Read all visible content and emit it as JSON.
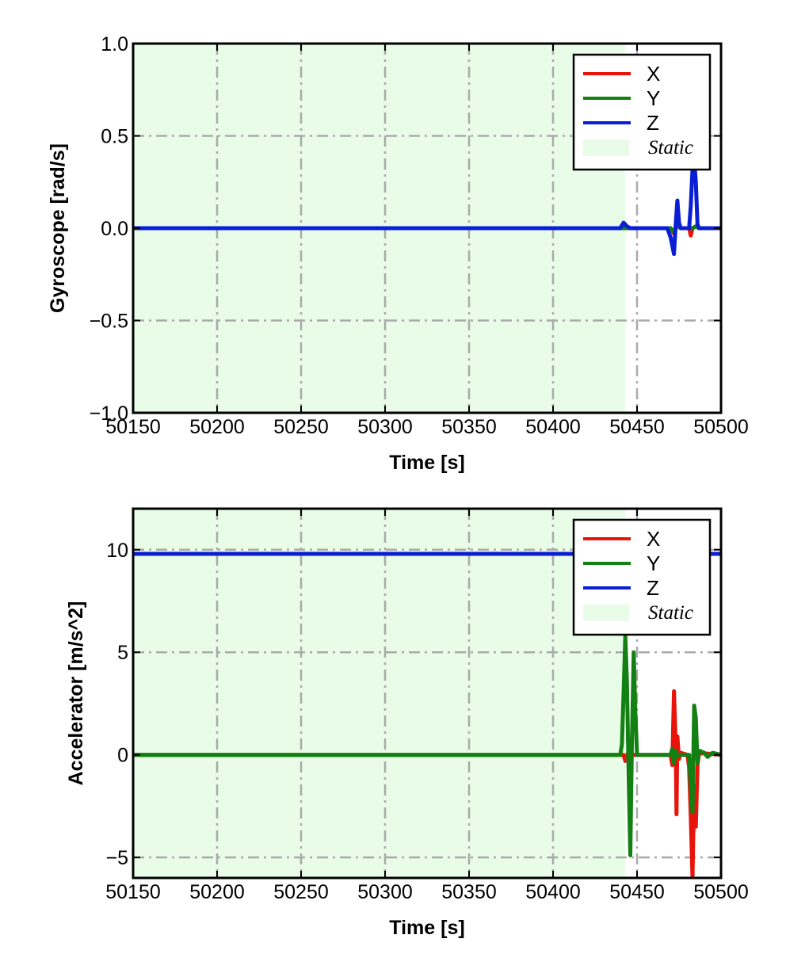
{
  "chart_data": [
    {
      "type": "line",
      "xlabel": "Time [s]",
      "ylabel": "Gyroscope [rad/s]",
      "xlim": [
        50150,
        50500
      ],
      "ylim": [
        -1.0,
        1.0
      ],
      "xticks": [
        50150,
        50200,
        50250,
        50300,
        50350,
        50400,
        50450,
        50500
      ],
      "xtick_labels": [
        "50150",
        "50200",
        "50250",
        "50300",
        "50350",
        "50400",
        "50450",
        "50500"
      ],
      "yticks": [
        1.0,
        0.5,
        0.0,
        -0.5,
        -1.0
      ],
      "ytick_labels": [
        "1.0",
        "0.5",
        "0.0",
        "−0.5",
        "−1.0"
      ],
      "grid": true,
      "legend_position": "top-right",
      "static_region": {
        "label": "Static",
        "x_start": 50150,
        "x_end": 50443,
        "color": "#e8fce8"
      },
      "series": [
        {
          "name": "X",
          "color": "#e8140c",
          "points": [
            [
              50150,
              0
            ],
            [
              50440,
              0
            ],
            [
              50443,
              0.01
            ],
            [
              50446,
              0
            ],
            [
              50470,
              0
            ],
            [
              50472,
              -0.03
            ],
            [
              50474,
              0.02
            ],
            [
              50476,
              0
            ],
            [
              50481,
              0
            ],
            [
              50482,
              -0.04
            ],
            [
              50483,
              0
            ],
            [
              50485,
              0.01
            ],
            [
              50487,
              0
            ],
            [
              50500,
              0
            ]
          ]
        },
        {
          "name": "Y",
          "color": "#138013",
          "points": [
            [
              50150,
              0
            ],
            [
              50470,
              0
            ],
            [
              50472,
              -0.02
            ],
            [
              50474,
              0.02
            ],
            [
              50476,
              0
            ],
            [
              50483,
              0
            ],
            [
              50485,
              0.01
            ],
            [
              50487,
              0
            ],
            [
              50500,
              0
            ]
          ]
        },
        {
          "name": "Z",
          "color": "#0a1ed6",
          "points": [
            [
              50150,
              0
            ],
            [
              50440,
              0
            ],
            [
              50442,
              0.03
            ],
            [
              50444,
              0.01
            ],
            [
              50446,
              0
            ],
            [
              50468,
              0
            ],
            [
              50470,
              -0.05
            ],
            [
              50472,
              -0.14
            ],
            [
              50473,
              0.02
            ],
            [
              50474,
              0.15
            ],
            [
              50475,
              0.03
            ],
            [
              50476,
              0
            ],
            [
              50481,
              0
            ],
            [
              50482,
              0.12
            ],
            [
              50483,
              0.32
            ],
            [
              50484,
              0.38
            ],
            [
              50485,
              0.25
            ],
            [
              50486,
              0.02
            ],
            [
              50487,
              0
            ],
            [
              50500,
              0
            ]
          ]
        }
      ],
      "legend": [
        {
          "label": "X",
          "color": "#e8140c"
        },
        {
          "label": "Y",
          "color": "#138013"
        },
        {
          "label": "Z",
          "color": "#0a1ed6"
        },
        {
          "label": "Static",
          "color": "#e8fce8"
        }
      ]
    },
    {
      "type": "line",
      "xlabel": "Time [s]",
      "ylabel": "Accelerator [m/s^2]",
      "xlim": [
        50150,
        50500
      ],
      "ylim": [
        -6,
        12
      ],
      "xticks": [
        50150,
        50200,
        50250,
        50300,
        50350,
        50400,
        50450,
        50500
      ],
      "xtick_labels": [
        "50150",
        "50200",
        "50250",
        "50300",
        "50350",
        "50400",
        "50450",
        "50500"
      ],
      "yticks": [
        10,
        5,
        0,
        -5
      ],
      "ytick_labels": [
        "10",
        "5",
        "0",
        "−5"
      ],
      "grid": true,
      "legend_position": "top-right",
      "static_region": {
        "label": "Static",
        "x_start": 50150,
        "x_end": 50443,
        "color": "#e8fce8"
      },
      "series": [
        {
          "name": "X",
          "color": "#e8140c",
          "points": [
            [
              50150,
              0
            ],
            [
              50442,
              0
            ],
            [
              50443,
              -0.3
            ],
            [
              50445,
              0.2
            ],
            [
              50447,
              0
            ],
            [
              50470,
              0
            ],
            [
              50471,
              -0.5
            ],
            [
              50472,
              3.1
            ],
            [
              50473,
              0.5
            ],
            [
              50473.5,
              -2.9
            ],
            [
              50474,
              0.9
            ],
            [
              50475,
              -0.2
            ],
            [
              50476,
              0.1
            ],
            [
              50480,
              0
            ],
            [
              50481,
              -0.6
            ],
            [
              50482,
              -3.0
            ],
            [
              50483,
              -6.0
            ],
            [
              50484,
              -1.5
            ],
            [
              50485,
              -3.5
            ],
            [
              50486,
              -0.5
            ],
            [
              50487,
              0.1
            ],
            [
              50500,
              0
            ]
          ]
        },
        {
          "name": "Y",
          "color": "#138013",
          "points": [
            [
              50150,
              0
            ],
            [
              50440,
              0
            ],
            [
              50441,
              0.5
            ],
            [
              50442,
              3.0
            ],
            [
              50443,
              5.8
            ],
            [
              50444,
              3.5
            ],
            [
              50445,
              -1.0
            ],
            [
              50446,
              -4.9
            ],
            [
              50447,
              0.8
            ],
            [
              50448,
              5.0
            ],
            [
              50449,
              2.0
            ],
            [
              50450,
              0
            ],
            [
              50470,
              0
            ],
            [
              50471,
              0.3
            ],
            [
              50472,
              -0.4
            ],
            [
              50473,
              0.2
            ],
            [
              50474,
              0
            ],
            [
              50481,
              0
            ],
            [
              50482,
              -1.5
            ],
            [
              50483,
              -2.8
            ],
            [
              50484,
              2.4
            ],
            [
              50485,
              1.8
            ],
            [
              50486,
              -0.4
            ],
            [
              50487,
              0.2
            ],
            [
              50490,
              0.1
            ],
            [
              50492,
              -0.1
            ],
            [
              50495,
              0.1
            ],
            [
              50500,
              0
            ]
          ]
        },
        {
          "name": "Z",
          "color": "#0a1ed6",
          "points": [
            [
              50150,
              9.8
            ],
            [
              50500,
              9.8
            ]
          ]
        }
      ],
      "legend": [
        {
          "label": "X",
          "color": "#e8140c"
        },
        {
          "label": "Y",
          "color": "#138013"
        },
        {
          "label": "Z",
          "color": "#0a1ed6"
        },
        {
          "label": "Static",
          "color": "#e8fce8"
        }
      ]
    }
  ]
}
